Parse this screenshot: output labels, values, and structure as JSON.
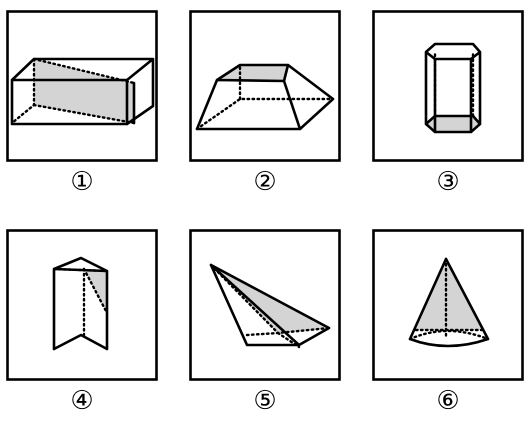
{
  "figures": [
    {
      "label": "①",
      "solid": "rectangular-prism-with-section"
    },
    {
      "label": "②",
      "solid": "frustum"
    },
    {
      "label": "③",
      "solid": "hexagonal-prism"
    },
    {
      "label": "④",
      "solid": "triangular-prism-with-section"
    },
    {
      "label": "⑤",
      "solid": "triangular-pyramid-with-section"
    },
    {
      "label": "⑥",
      "solid": "cone-with-section"
    }
  ],
  "colors": {
    "stroke": "#000000",
    "section_fill": "#d4d4d4",
    "background": "#ffffff"
  }
}
